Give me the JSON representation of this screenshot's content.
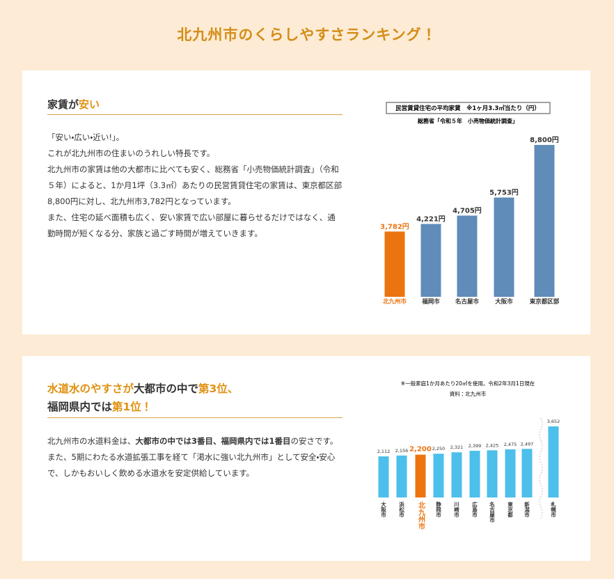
{
  "page_title": "北九州市のくらしやすさランキング！",
  "sections": [
    {
      "heading": [
        "家賃が",
        "安い"
      ],
      "paragraphs": [
        "「安い・広い・近い!」。",
        "これが北九州市の住まいのうれしい特長です。",
        "北九州市の家賃は他の大都市に比べても安く、総務省「小売物価統計調査」（令和５年）によると、1か月1坪（3.3㎡）あたりの民営賃貸住宅の家賃は、東京都区部8,800円に対し、北九州市3,782円となっています。",
        "また、住宅の延べ面積も広く、安い家賃で広い部屋に暮らせるだけではなく、通勤時間が短くなる分、家族と過ごす時間が増えていきます。"
      ]
    },
    {
      "heading": [
        "水道水のやすさが",
        "大都市の中で",
        "第3位、",
        "福岡県内では",
        "第1位！"
      ],
      "paragraphs": [
        [
          "北九州市の水道料金は、",
          "大都市の中では3番目、福岡県内では1番目",
          "の安さです。"
        ],
        [
          "また、5期にわたる水道拡張工事を経て「渇水に強い北九州市」として安全・安心で、しかもおいしく飲める水道水を安定供給しています。"
        ]
      ]
    }
  ],
  "chart_data": [
    {
      "type": "bar",
      "title": "民営賃貸住宅の平均家賃　※1ヶ月3.3㎡当たり（円）",
      "subtitle": "総務省「令和５年　小売物価統計調査」",
      "categories": [
        "北九州市",
        "福岡市",
        "名古屋市",
        "大阪市",
        "東京都区部"
      ],
      "values": [
        3782,
        4221,
        4705,
        5753,
        8800
      ],
      "value_labels": [
        "3,782円",
        "4,221円",
        "4,705円",
        "5,753円",
        "8,800円"
      ],
      "colors": [
        "#ec7410",
        "#5f8cb9",
        "#5f8cb9",
        "#5f8cb9",
        "#5f8cb9"
      ]
    },
    {
      "type": "bar",
      "notes": [
        "※一般家庭1か月あたり20㎡を使用。令和2年3月1日現在",
        "資料：北九州市"
      ],
      "categories": [
        "大阪市",
        "浜松市",
        "北九州市",
        "静岡市",
        "川崎市",
        "広島市",
        "名古屋市",
        "東京都",
        "新潟市",
        "札幌市"
      ],
      "values": [
        2112,
        2156,
        2200,
        2250,
        2321,
        2399,
        2425,
        2475,
        2497,
        3652
      ],
      "value_labels": [
        "2,112",
        "2,156",
        "2,200",
        "2,250",
        "2,321",
        "2,399",
        "2,425",
        "2,475",
        "2,497",
        "3,652"
      ],
      "colors": [
        "#4cbfeb",
        "#4cbfeb",
        "#ec7410",
        "#4cbfeb",
        "#4cbfeb",
        "#4cbfeb",
        "#4cbfeb",
        "#4cbfeb",
        "#4cbfeb",
        "#4cbfeb"
      ]
    }
  ]
}
